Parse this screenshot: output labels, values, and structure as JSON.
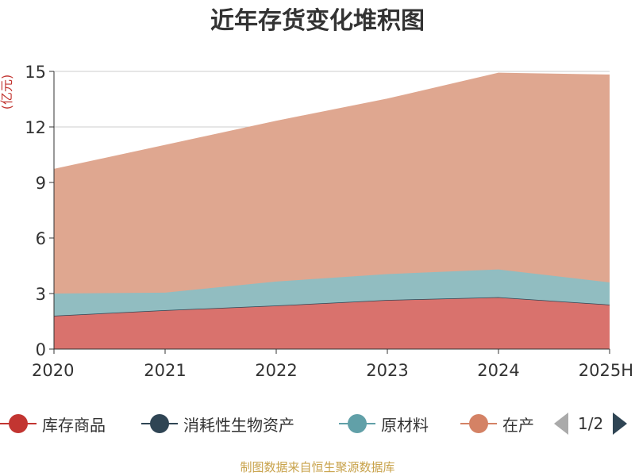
{
  "chart_data": {
    "type": "area",
    "stacked": true,
    "title": "近年存货变化堆积图",
    "ylabel": "(亿元)",
    "xlabel": "",
    "categories": [
      "2020",
      "2021",
      "2022",
      "2023",
      "2024",
      "2025H"
    ],
    "ylim": [
      0,
      15
    ],
    "yticks": [
      0,
      3,
      6,
      9,
      12,
      15
    ],
    "grid": true,
    "legend_position": "bottom",
    "series": [
      {
        "name": "库存商品",
        "color": "#d9726d",
        "values": [
          1.8,
          2.1,
          2.35,
          2.65,
          2.8,
          2.4
        ]
      },
      {
        "name": "消耗性生物资产",
        "color": "#2f4554",
        "values": [
          0,
          0,
          0,
          0,
          0,
          0
        ]
      },
      {
        "name": "原材料",
        "color": "#91bdc1",
        "values": [
          1.2,
          0.95,
          1.3,
          1.4,
          1.5,
          1.2
        ]
      },
      {
        "name": "在产",
        "color": "#dfa790",
        "values": [
          6.7,
          7.95,
          8.65,
          9.45,
          10.6,
          11.2
        ]
      }
    ]
  },
  "legend": {
    "items": [
      {
        "label": "库存商品",
        "color": "#c23531"
      },
      {
        "label": "消耗性生物资产",
        "color": "#2f4554"
      },
      {
        "label": "原材料",
        "color": "#61a0a8"
      },
      {
        "label": "在产",
        "color": "#d48265"
      }
    ],
    "page_text": "1/2"
  },
  "source": "制图数据来自恒生聚源数据库"
}
